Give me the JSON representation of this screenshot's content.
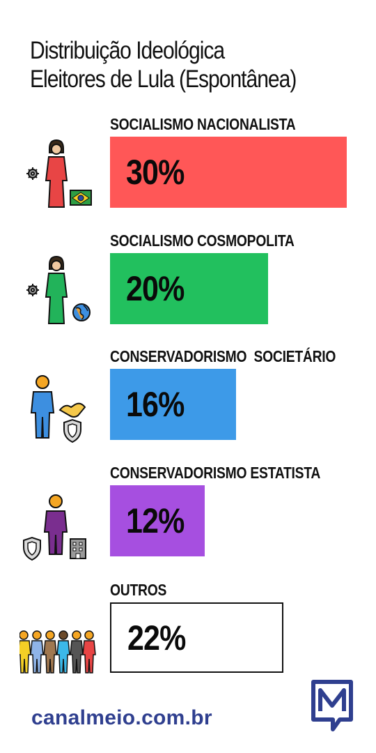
{
  "header": {
    "title_line1": "Distribuição Ideológica",
    "title_line2": "Eleitores de Lula (Espontânea)"
  },
  "chart_data": {
    "type": "bar",
    "orientation": "horizontal",
    "title": "Distribuição Ideológica Eleitores de Lula (Espontânea)",
    "unit": "%",
    "categories": [
      "SOCIALISMO NACIONALISTA",
      "SOCIALISMO COSMOPOLITA",
      "CONSERVADORISMO  SOCIETÁRIO",
      "CONSERVADORISMO ESTATISTA",
      "OUTROS"
    ],
    "values": [
      30,
      20,
      16,
      12,
      22
    ],
    "value_labels": [
      "30%",
      "20%",
      "16%",
      "12%",
      "22%"
    ],
    "colors": [
      "#ff5757",
      "#22c05e",
      "#3d9ae8",
      "#a64fe0",
      "#ffffff"
    ],
    "xlim": [
      0,
      30
    ],
    "grid": false,
    "legend": "none"
  },
  "icons": [
    "woman-with-gear-and-brazil-flag-icon",
    "woman-with-gear-and-globe-icon",
    "man-with-handshake-and-shield-icon",
    "man-with-shield-and-building-icon",
    "group-of-people-icon"
  ],
  "footer": {
    "site": "canalmeio.com.br"
  },
  "brand": {
    "logo": "meio-logo-icon",
    "color": "#2f3f8f"
  }
}
